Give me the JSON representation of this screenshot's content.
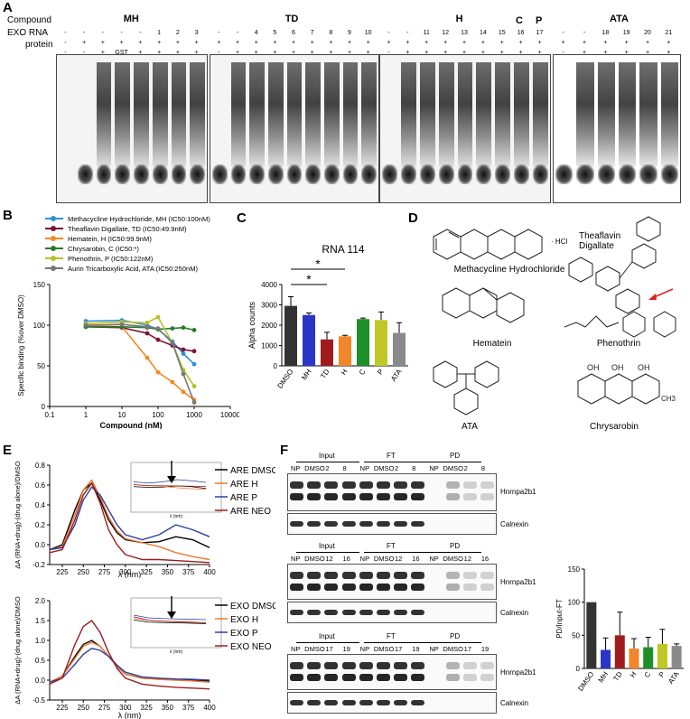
{
  "panels": {
    "A": {
      "label": "A",
      "row_labels": [
        "Compound",
        "EXO RNA",
        "protein"
      ],
      "groups": [
        {
          "name": "MH",
          "lanes": [
            {
              "c": "-",
              "rna": "-",
              "p": "-"
            },
            {
              "c": "-",
              "rna": "+",
              "p": "-"
            },
            {
              "c": "-",
              "rna": "+",
              "p": "+"
            },
            {
              "c": "-",
              "rna": "+",
              "p": "GST"
            },
            {
              "c": "-",
              "rna": "+",
              "p": "+"
            },
            {
              "c": "1",
              "rna": "+",
              "p": "+"
            },
            {
              "c": "2",
              "rna": "+",
              "p": "+"
            },
            {
              "c": "3",
              "rna": "+",
              "p": "+"
            }
          ]
        },
        {
          "name": "TD",
          "lanes": [
            {
              "c": "-",
              "rna": "+",
              "p": "-"
            },
            {
              "c": "-",
              "rna": "+",
              "p": "+"
            },
            {
              "c": "4",
              "rna": "+",
              "p": "+"
            },
            {
              "c": "5",
              "rna": "+",
              "p": "+"
            },
            {
              "c": "6",
              "rna": "+",
              "p": "+"
            },
            {
              "c": "7",
              "rna": "+",
              "p": "+"
            },
            {
              "c": "8",
              "rna": "+",
              "p": "+"
            },
            {
              "c": "9",
              "rna": "+",
              "p": "+"
            },
            {
              "c": "10",
              "rna": "+",
              "p": "+"
            }
          ]
        },
        {
          "name": "H",
          "sub": [
            "C",
            "P"
          ],
          "lanes": [
            {
              "c": "-",
              "rna": "+",
              "p": "-"
            },
            {
              "c": "-",
              "rna": "+",
              "p": "+"
            },
            {
              "c": "11",
              "rna": "+",
              "p": "+"
            },
            {
              "c": "12",
              "rna": "+",
              "p": "+"
            },
            {
              "c": "13",
              "rna": "+",
              "p": "+"
            },
            {
              "c": "14",
              "rna": "+",
              "p": "+"
            },
            {
              "c": "15",
              "rna": "+",
              "p": "+"
            },
            {
              "c": "16",
              "rna": "+",
              "p": "+"
            },
            {
              "c": "17",
              "rna": "+",
              "p": "+"
            }
          ]
        },
        {
          "name": "ATA",
          "lanes": [
            {
              "c": "-",
              "rna": "+",
              "p": "-"
            },
            {
              "c": "-",
              "rna": "+",
              "p": "+"
            },
            {
              "c": "18",
              "rna": "+",
              "p": "+"
            },
            {
              "c": "19",
              "rna": "+",
              "p": "+"
            },
            {
              "c": "20",
              "rna": "+",
              "p": "+"
            },
            {
              "c": "21",
              "rna": "+",
              "p": "+"
            }
          ]
        }
      ]
    },
    "B": {
      "label": "B",
      "ylabel": "Specific binding (%over DMSO)",
      "xlabel": "Compound (nM)",
      "yticks": [
        "0",
        "50",
        "100",
        "150"
      ],
      "xticks": [
        "0.1",
        "1",
        "10",
        "100",
        "1000",
        "10000"
      ],
      "legend": [
        {
          "text": "Methacycline Hydrochloride, MH (IC50:100nM)",
          "color": "#2e8fd8"
        },
        {
          "text": "Theaflavin Digallate, TD (IC50:49.9nM)",
          "color": "#7a1335"
        },
        {
          "text": "Hematein, H (IC50:99.9nM)",
          "color": "#f08a24"
        },
        {
          "text": "Chrysarobin, C (IC50:*)",
          "color": "#2a7a2a"
        },
        {
          "text": "Phenothrin, P (IC50:122nM)",
          "color": "#b5c22a"
        },
        {
          "text": "Aurin Tricarboxylic Acid, ATA (IC50:250nM)",
          "color": "#777777"
        }
      ]
    },
    "C": {
      "label": "C",
      "title": "RNA 114",
      "ylabel": "Alpha counts",
      "yticks": [
        "0",
        "1000",
        "2000",
        "3000",
        "4000"
      ],
      "star1": "*",
      "star2": "*"
    },
    "D": {
      "label": "D",
      "names": {
        "mh": "Methacycline Hydrochloride",
        "hcl": "· HCl",
        "td": "Theaflavin Digallate",
        "hematein": "Hematein",
        "phenothrin": "Phenothrin",
        "ata": "ATA",
        "chrysarobin": "Chrysarobin"
      }
    },
    "E": {
      "label": "E",
      "ylabel_top": "ΔA (RNA+drug)-(drug alone)/DMSO",
      "ylabel_bottom": "ΔA (RNA+drug)-(drug alone)/DMSO",
      "xlabel": "λ (nm)",
      "xticks": [
        "225",
        "250",
        "275",
        "300",
        "325",
        "350",
        "375",
        "400"
      ],
      "yticks_top": [
        "-0.2",
        "0.0",
        "0.2",
        "0.4",
        "0.6",
        "0.8"
      ],
      "yticks_bottom": [
        "-0.5",
        "0.0",
        "0.5",
        "1.0",
        "1.5",
        "2.0"
      ],
      "inset_xlabel": "λ (nm)",
      "legend_top": [
        {
          "text": "ARE DMSO",
          "color": "#000000"
        },
        {
          "text": "ARE H",
          "color": "#f07830"
        },
        {
          "text": "ARE P",
          "color": "#2c3fa0"
        },
        {
          "text": "ARE NEO",
          "color": "#9b1d1d"
        }
      ],
      "legend_bottom": [
        {
          "text": "EXO DMSO",
          "color": "#000000"
        },
        {
          "text": "EXO H",
          "color": "#f07830"
        },
        {
          "text": "EXO P",
          "color": "#2c3fa0"
        },
        {
          "text": "EXO NEO",
          "color": "#9b1d1d"
        }
      ]
    },
    "F": {
      "label": "F",
      "blots": [
        {
          "lanes": [
            "NP",
            "DMSO",
            "2",
            "8",
            "NP",
            "DMSO",
            "2",
            "8",
            "NP",
            "DMSO",
            "2",
            "8"
          ]
        },
        {
          "lanes": [
            "NP",
            "DMSO",
            "12",
            "16",
            "NP",
            "DMSO",
            "12",
            "16",
            "NP",
            "DMSO",
            "12",
            "16"
          ]
        },
        {
          "lanes": [
            "NP",
            "DMSO",
            "17",
            "19",
            "NP",
            "DMSO",
            "17",
            "19",
            "NP",
            "DMSO",
            "17",
            "19"
          ]
        }
      ],
      "sections": [
        "Input",
        "FT",
        "PD"
      ],
      "protein1": "Hnrnpa2b1",
      "protein2": "Calnexin",
      "bar_ylabel": "PD/Input-FT",
      "bar_yticks": [
        "0",
        "50",
        "100",
        "150"
      ]
    }
  },
  "chart_data": [
    {
      "type": "line",
      "panel": "B",
      "xlabel": "Compound (nM)",
      "ylabel": "Specific binding (%over DMSO)",
      "xscale": "log",
      "xlim": [
        0.1,
        10000
      ],
      "ylim": [
        0,
        150
      ],
      "x": [
        1,
        10,
        50,
        100,
        250,
        500,
        1000
      ],
      "series": [
        {
          "name": "Methacycline Hydrochloride, MH (IC50:100nM)",
          "values": [
            105,
            106,
            100,
            95,
            80,
            65,
            52
          ]
        },
        {
          "name": "Theaflavin Digallate, TD (IC50:49.9nM)",
          "values": [
            98,
            97,
            90,
            82,
            75,
            70,
            68
          ]
        },
        {
          "name": "Hematein, H (IC50:99.9nM)",
          "values": [
            100,
            98,
            60,
            42,
            30,
            18,
            8
          ]
        },
        {
          "name": "Chrysarobin, C (IC50:*)",
          "values": [
            98,
            98,
            97,
            95,
            96,
            97,
            94
          ]
        },
        {
          "name": "Phenothrin, P (IC50:122nM)",
          "values": [
            102,
            104,
            103,
            110,
            78,
            45,
            25
          ]
        },
        {
          "name": "Aurin Tricarboxylic Acid, ATA (IC50:250nM)",
          "values": [
            100,
            101,
            98,
            96,
            78,
            40,
            5
          ]
        }
      ]
    },
    {
      "type": "bar",
      "panel": "C",
      "title": "RNA 114",
      "ylabel": "Alpha counts",
      "ylim": [
        0,
        4000
      ],
      "categories": [
        "DMSO",
        "MH",
        "TD",
        "H",
        "C",
        "P",
        "ATA"
      ],
      "values": [
        2950,
        2500,
        1300,
        1450,
        2300,
        2250,
        1620
      ],
      "errors": [
        450,
        100,
        350,
        50,
        50,
        400,
        500
      ],
      "colors": [
        "#333333",
        "#2b35c8",
        "#a01c1c",
        "#f2862a",
        "#1f8f2a",
        "#c0c825",
        "#8a8a8a"
      ]
    },
    {
      "type": "bar",
      "panel": "F",
      "ylabel": "PD/Input-FT",
      "ylim": [
        0,
        150
      ],
      "categories": [
        "DMSO",
        "MH",
        "TD",
        "H",
        "C",
        "P",
        "ATA"
      ],
      "values": [
        100,
        28,
        50,
        30,
        32,
        37,
        34
      ],
      "errors": [
        0,
        18,
        35,
        15,
        15,
        22,
        3
      ],
      "colors": [
        "#333333",
        "#2b35c8",
        "#a01c1c",
        "#f2862a",
        "#1f8f2a",
        "#c0c825",
        "#8a8a8a"
      ]
    },
    {
      "type": "line",
      "panel": "E-top",
      "xlabel": "λ (nm)",
      "xlim": [
        210,
        400
      ],
      "ylim": [
        -0.2,
        0.8
      ],
      "x": [
        210,
        225,
        240,
        250,
        260,
        270,
        280,
        290,
        300,
        320,
        340,
        360,
        380,
        400
      ],
      "series": [
        {
          "name": "ARE DMSO",
          "values": [
            -0.05,
            0.0,
            0.35,
            0.55,
            0.62,
            0.45,
            0.25,
            0.12,
            0.05,
            0.02,
            0.03,
            0.08,
            0.05,
            -0.03
          ]
        },
        {
          "name": "ARE H",
          "values": [
            -0.05,
            -0.02,
            0.3,
            0.55,
            0.65,
            0.48,
            0.28,
            0.14,
            0.06,
            0.02,
            -0.02,
            -0.08,
            -0.12,
            -0.15
          ]
        },
        {
          "name": "ARE P",
          "values": [
            -0.05,
            -0.03,
            0.2,
            0.45,
            0.58,
            0.5,
            0.35,
            0.2,
            0.1,
            0.05,
            0.1,
            0.2,
            0.15,
            0.08
          ]
        },
        {
          "name": "ARE NEO",
          "values": [
            -0.08,
            -0.05,
            0.25,
            0.5,
            0.62,
            0.42,
            0.15,
            0.0,
            -0.1,
            -0.15,
            -0.15,
            -0.16,
            -0.17,
            -0.18
          ]
        }
      ]
    },
    {
      "type": "line",
      "panel": "E-bottom",
      "xlabel": "λ (nm)",
      "xlim": [
        210,
        400
      ],
      "ylim": [
        -0.5,
        2.0
      ],
      "x": [
        210,
        225,
        240,
        250,
        260,
        270,
        280,
        290,
        300,
        320,
        340,
        360,
        380,
        400
      ],
      "series": [
        {
          "name": "EXO DMSO",
          "values": [
            -0.05,
            0.1,
            0.6,
            0.9,
            1.0,
            0.85,
            0.6,
            0.35,
            0.15,
            0.05,
            0.03,
            0.02,
            0.0,
            -0.02
          ]
        },
        {
          "name": "EXO H",
          "values": [
            -0.05,
            0.1,
            0.55,
            0.85,
            0.95,
            0.85,
            0.6,
            0.35,
            0.15,
            0.05,
            0.02,
            0.0,
            -0.02,
            -0.05
          ]
        },
        {
          "name": "EXO P",
          "values": [
            -0.05,
            0.05,
            0.4,
            0.65,
            0.8,
            0.75,
            0.6,
            0.38,
            0.2,
            0.08,
            0.05,
            0.03,
            0.02,
            0.0
          ]
        },
        {
          "name": "EXO NEO",
          "values": [
            -0.1,
            0.05,
            0.9,
            1.35,
            1.5,
            1.2,
            0.7,
            0.3,
            0.05,
            -0.1,
            -0.15,
            -0.18,
            -0.2,
            -0.22
          ]
        }
      ]
    }
  ]
}
